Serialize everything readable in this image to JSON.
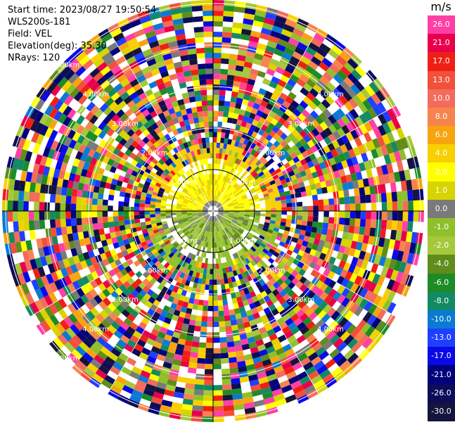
{
  "header": {
    "start_time": "Start time: 2023/08/27 19:50:54",
    "instrument": "WLS200s-181",
    "field": "Field: VEL",
    "elevation": "Elevation(deg): 35.30",
    "nrays": "NRays: 120"
  },
  "colorbar": {
    "unit": "m/s",
    "levels": [
      {
        "label": "26.0",
        "color": "#ff3fa6"
      },
      {
        "label": "21.0",
        "color": "#e8004c"
      },
      {
        "label": "17.0",
        "color": "#f01f15"
      },
      {
        "label": "13.0",
        "color": "#f2503a"
      },
      {
        "label": "10.0",
        "color": "#f36b5b"
      },
      {
        "label": "8.0",
        "color": "#f7844e"
      },
      {
        "label": "6.0",
        "color": "#f8a410"
      },
      {
        "label": "4.0",
        "color": "#f8d000"
      },
      {
        "label": "2.0",
        "color": "#ffff00"
      },
      {
        "label": "1.0",
        "color": "#d7d400"
      },
      {
        "label": "0.0",
        "color": "#7a7a7a"
      },
      {
        "label": "-1.0",
        "color": "#8fc02a"
      },
      {
        "label": "-2.0",
        "color": "#a6c83a"
      },
      {
        "label": "-4.0",
        "color": "#5f8c1a"
      },
      {
        "label": "-6.0",
        "color": "#1d8b26"
      },
      {
        "label": "-8.0",
        "color": "#138a63"
      },
      {
        "label": "-10.0",
        "color": "#0a7ad3"
      },
      {
        "label": "-13.0",
        "color": "#1f3fff"
      },
      {
        "label": "-17.0",
        "color": "#0a0ae6"
      },
      {
        "label": "-21.0",
        "color": "#02027a"
      },
      {
        "label": "-26.0",
        "color": "#0c0c5a"
      },
      {
        "label": "-30.0",
        "color": "#14143c"
      }
    ]
  },
  "range_rings": [
    "1.00km",
    "2.00km",
    "3.00km",
    "4.00km",
    "5.00km"
  ],
  "ring_labels": [
    {
      "text": "1.00km",
      "quadrant": "lower-left",
      "ring": 1
    },
    {
      "text": "1.00km",
      "quadrant": "lower-right",
      "ring": 1
    },
    {
      "text": "1.00km",
      "quadrant": "upper-left",
      "ring": 1
    },
    {
      "text": "1.00km",
      "quadrant": "upper-right",
      "ring": 1
    },
    {
      "text": "2.00km",
      "quadrant": "lower-left",
      "ring": 2
    },
    {
      "text": "2.00km",
      "quadrant": "lower-right",
      "ring": 2
    },
    {
      "text": "2.00km",
      "quadrant": "upper-left",
      "ring": 2
    },
    {
      "text": "2.00km",
      "quadrant": "upper-right",
      "ring": 2
    },
    {
      "text": "3.00km",
      "quadrant": "lower-left",
      "ring": 3
    },
    {
      "text": "3.00km",
      "quadrant": "lower-right",
      "ring": 3
    },
    {
      "text": "3.00km",
      "quadrant": "upper-left",
      "ring": 3
    },
    {
      "text": "3.00km",
      "quadrant": "upper-right",
      "ring": 3
    },
    {
      "text": "4.00km",
      "quadrant": "lower-left",
      "ring": 4
    },
    {
      "text": "4.00km",
      "quadrant": "lower-right",
      "ring": 4
    },
    {
      "text": "4.00km",
      "quadrant": "upper-left",
      "ring": 4
    },
    {
      "text": "4.00km",
      "quadrant": "upper-right",
      "ring": 4
    },
    {
      "text": "5.00km",
      "quadrant": "lower-left",
      "ring": 5
    },
    {
      "text": "5.00km",
      "quadrant": "upper-left",
      "ring": 5
    }
  ]
}
